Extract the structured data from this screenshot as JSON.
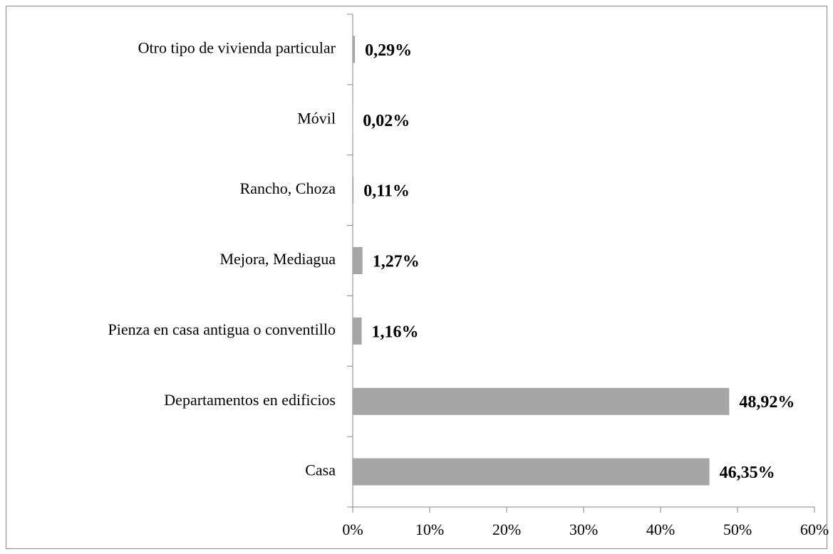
{
  "chart_data": {
    "type": "hbar",
    "categories": [
      "Otro tipo de vivienda particular",
      "Móvil",
      "Rancho, Choza",
      "Mejora, Mediagua",
      "Pienza en casa antigua o conventillo",
      "Departamentos en edificios",
      "Casa"
    ],
    "values": [
      0.29,
      0.02,
      0.11,
      1.27,
      1.16,
      48.92,
      46.35
    ],
    "value_labels": [
      "0,29%",
      "0,02%",
      "0,11%",
      "1,27%",
      "1,16%",
      "48,92%",
      "46,35%"
    ],
    "color": "#a6a6a6",
    "xlim": [
      0,
      60
    ],
    "xticks": [
      {
        "value": 0,
        "label": "0%"
      },
      {
        "value": 10,
        "label": "10%"
      },
      {
        "value": 20,
        "label": "20%"
      },
      {
        "value": 30,
        "label": "30%"
      },
      {
        "value": 40,
        "label": "40%"
      },
      {
        "value": 50,
        "label": "50%"
      },
      {
        "value": 60,
        "label": "60%"
      }
    ],
    "grid": false
  }
}
